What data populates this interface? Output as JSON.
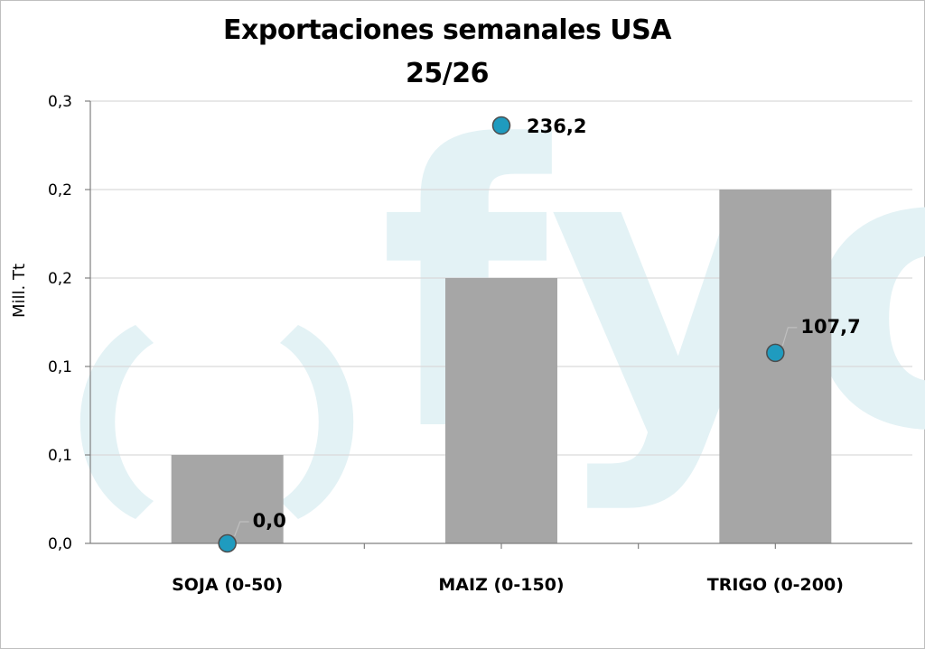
{
  "chart_data": {
    "type": "bar",
    "title": "Exportaciones semanales USA",
    "subtitle": "25/26",
    "ylabel": "Mill. Tt",
    "xlabel": "",
    "categories": [
      "SOJA (0-50)",
      "MAIZ (0-150)",
      "TRIGO (0-200)"
    ],
    "ylim": [
      0,
      0.25
    ],
    "y_tick_values": [
      0,
      0.05,
      0.1,
      0.15,
      0.2,
      0.25
    ],
    "y_tick_labels": [
      "0,0",
      "0,1",
      "0,1",
      "0,2",
      "0,2",
      "0,3"
    ],
    "grid": true,
    "legend": "none",
    "series": [
      {
        "type": "bar",
        "values": [
          0.05,
          0.15,
          0.2
        ],
        "color": "#a6a6a6"
      },
      {
        "type": "scatter",
        "values": [
          0.0,
          0.2362,
          0.1077
        ],
        "labels": [
          "0,0",
          "236,2",
          "107,7"
        ],
        "color": "#1f9bbf"
      }
    ],
    "watermark": "fyo"
  },
  "colors": {
    "bar": "#a6a6a6",
    "marker": "#1f9bbf",
    "marker_edge": "#4d4d4d",
    "grid": "#d9d9d9",
    "watermark": "#e3f2f5"
  }
}
